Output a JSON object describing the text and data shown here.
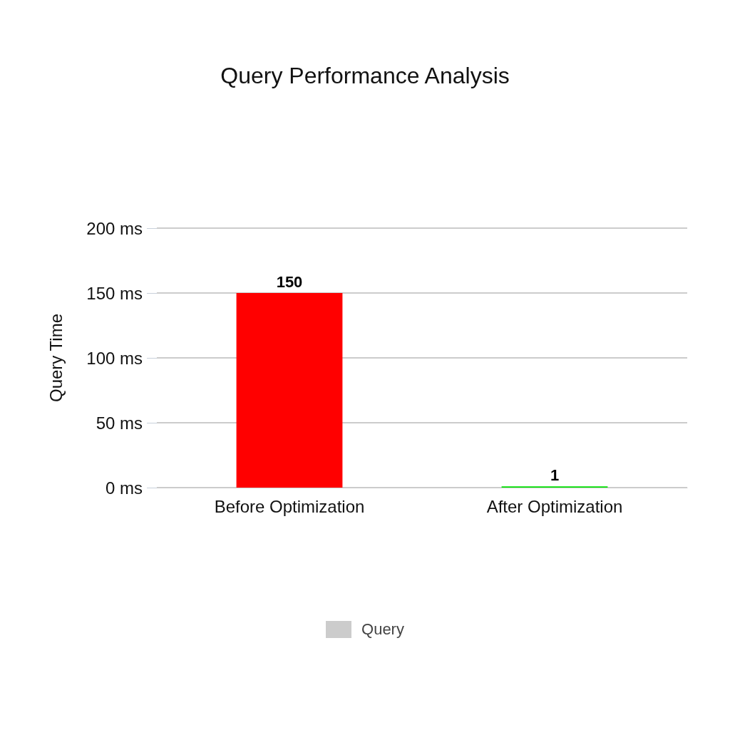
{
  "chart_data": {
    "type": "bar",
    "title": "Query Performance Analysis",
    "ylabel": "Query Time",
    "categories": [
      "Before Optimization",
      "After Optimization"
    ],
    "series": [
      {
        "name": "Query",
        "color": "#cccccc",
        "colors": [
          "#ff0000",
          "#00e000"
        ],
        "values": [
          150,
          1
        ]
      }
    ],
    "ylim": [
      0,
      200
    ],
    "yticks": [
      {
        "value": 0,
        "label": "0 ms"
      },
      {
        "value": 50,
        "label": "50 ms"
      },
      {
        "value": 100,
        "label": "100 ms"
      },
      {
        "value": 150,
        "label": "150 ms"
      },
      {
        "value": 200,
        "label": "200 ms"
      }
    ],
    "grid": "y",
    "legend": "bottom",
    "data_labels": true
  }
}
